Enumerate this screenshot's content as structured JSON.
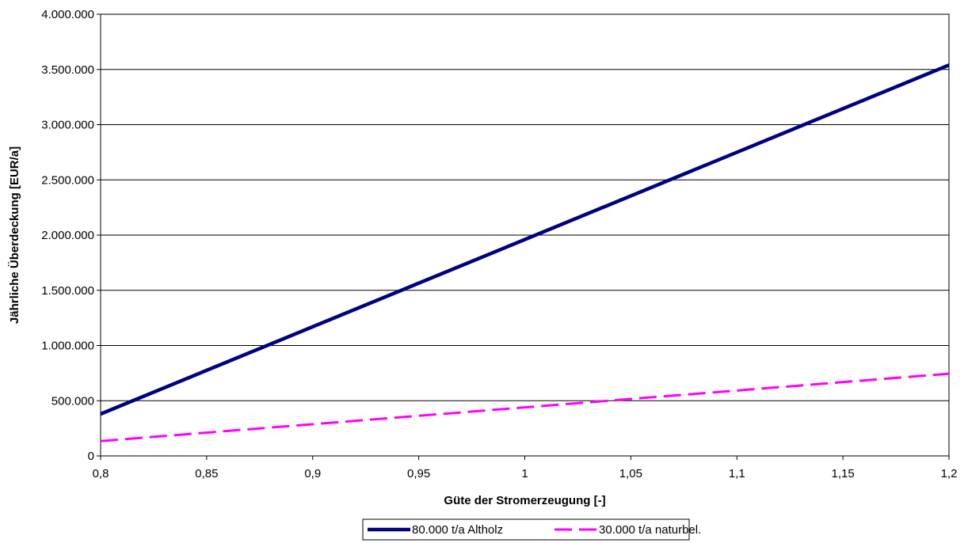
{
  "chart_data": {
    "type": "line",
    "xlabel": "Güte der Stromerzeugung [-]",
    "ylabel": "Jährliche Überdeckung [EUR/a]",
    "xlim": [
      0.8,
      1.2
    ],
    "ylim": [
      0,
      4000000
    ],
    "x_ticks": [
      0.8,
      0.85,
      0.9,
      0.95,
      1.0,
      1.05,
      1.1,
      1.15,
      1.2
    ],
    "x_tick_labels": [
      "0,8",
      "0,85",
      "0,9",
      "0,95",
      "1",
      "1,05",
      "1,1",
      "1,15",
      "1,2"
    ],
    "y_ticks": [
      0,
      500000,
      1000000,
      1500000,
      2000000,
      2500000,
      3000000,
      3500000,
      4000000
    ],
    "y_tick_labels": [
      "0",
      "500.000",
      "1.000.000",
      "1.500.000",
      "2.000.000",
      "2.500.000",
      "3.000.000",
      "3.500.000",
      "4.000.000"
    ],
    "grid": "horizontal",
    "legend_position": "bottom",
    "series": [
      {
        "name": "80.000 t/a Altholz",
        "color": "#000080",
        "style": "solid",
        "x": [
          0.8,
          1.2
        ],
        "y": [
          380000,
          3540000
        ]
      },
      {
        "name": "30.000 t/a naturbel.",
        "color": "#FF00FF",
        "style": "dashed",
        "x": [
          0.8,
          1.2
        ],
        "y": [
          135000,
          745000
        ]
      }
    ]
  }
}
